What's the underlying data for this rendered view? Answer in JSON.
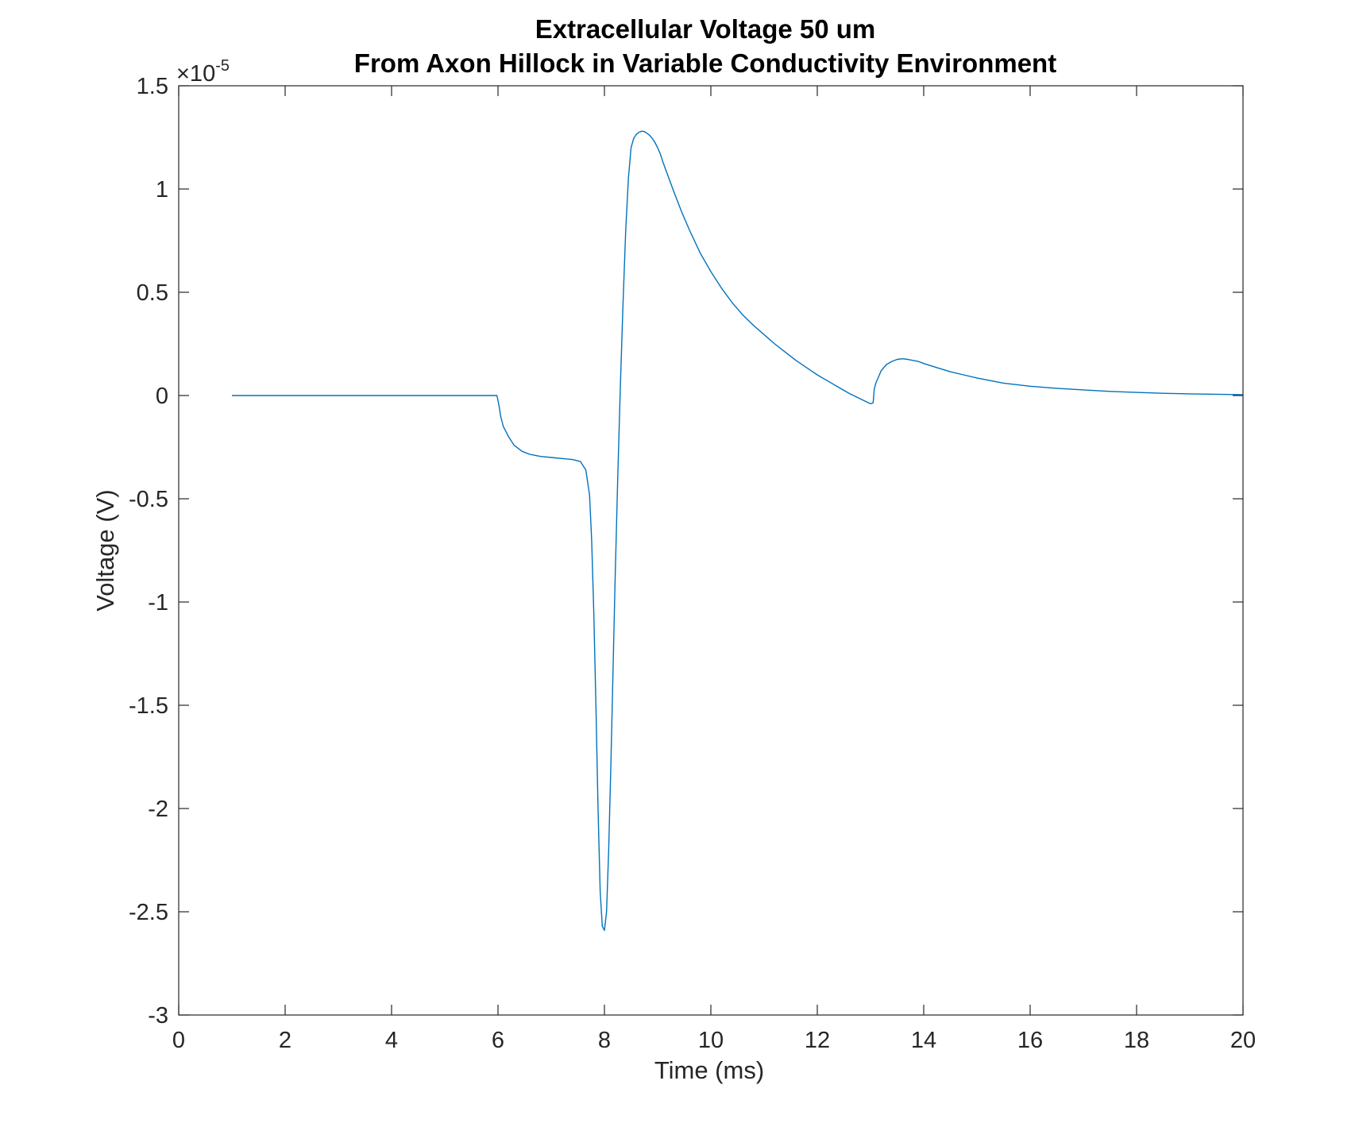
{
  "chart_data": {
    "type": "line",
    "title_line1": "Extracellular Voltage 50 um",
    "title_line2": "From Axon Hillock in Variable Conductivity Environment",
    "xlabel": "Time (ms)",
    "ylabel": "Voltage (V)",
    "xlim": [
      0,
      20
    ],
    "ylim": [
      -3,
      1.5
    ],
    "y_multiplier": {
      "base": "×10",
      "exponent": "-5"
    },
    "x_ticks": [
      "0",
      "2",
      "4",
      "6",
      "8",
      "10",
      "12",
      "14",
      "16",
      "18",
      "20"
    ],
    "y_ticks": [
      "-3",
      "-2.5",
      "-2",
      "-1.5",
      "-1",
      "-0.5",
      "0",
      "0.5",
      "1",
      "1.5"
    ],
    "grid": false,
    "line_color": "#0072BD",
    "series": [
      {
        "x": [
          1,
          5.98,
          6.02,
          6.05,
          6.1,
          6.2,
          6.3,
          6.45,
          6.6,
          6.8,
          7.0,
          7.2,
          7.4,
          7.55,
          7.65,
          7.72,
          7.76,
          7.8,
          7.84,
          7.88,
          7.92,
          7.96,
          8.0,
          8.04,
          8.08,
          8.12,
          8.16,
          8.2,
          8.25,
          8.3,
          8.35,
          8.4,
          8.45,
          8.5,
          8.55,
          8.6,
          8.65,
          8.7,
          8.75,
          8.8,
          8.85,
          8.9,
          8.95,
          9.0,
          9.05,
          9.1,
          9.2,
          9.3,
          9.45,
          9.6,
          9.8,
          10.0,
          10.2,
          10.4,
          10.6,
          10.8,
          11.0,
          11.2,
          11.4,
          11.6,
          11.8,
          12.0,
          12.2,
          12.4,
          12.6,
          12.8,
          13.0,
          13.05,
          13.07,
          13.1,
          13.15,
          13.2,
          13.3,
          13.4,
          13.5,
          13.6,
          13.7,
          13.8,
          13.9,
          14.0,
          14.25,
          14.5,
          14.75,
          15.0,
          15.5,
          16.0,
          16.5,
          17.0,
          17.5,
          18.0,
          18.5,
          19.0,
          19.5,
          20.0
        ],
        "values": [
          0,
          0,
          -0.05,
          -0.1,
          -0.15,
          -0.2,
          -0.24,
          -0.27,
          -0.285,
          -0.295,
          -0.3,
          -0.305,
          -0.31,
          -0.32,
          -0.36,
          -0.48,
          -0.7,
          -1.05,
          -1.5,
          -2.0,
          -2.4,
          -2.57,
          -2.59,
          -2.5,
          -2.2,
          -1.8,
          -1.35,
          -0.9,
          -0.4,
          0.05,
          0.45,
          0.8,
          1.05,
          1.2,
          1.245,
          1.265,
          1.275,
          1.28,
          1.278,
          1.27,
          1.26,
          1.245,
          1.225,
          1.2,
          1.17,
          1.13,
          1.06,
          0.99,
          0.89,
          0.8,
          0.69,
          0.6,
          0.52,
          0.45,
          0.39,
          0.34,
          0.295,
          0.25,
          0.21,
          0.17,
          0.135,
          0.1,
          0.07,
          0.04,
          0.01,
          -0.015,
          -0.04,
          -0.035,
          0.03,
          0.06,
          0.09,
          0.12,
          0.15,
          0.165,
          0.175,
          0.178,
          0.175,
          0.17,
          0.165,
          0.155,
          0.135,
          0.115,
          0.1,
          0.085,
          0.06,
          0.045,
          0.035,
          0.027,
          0.02,
          0.015,
          0.011,
          0.008,
          0.006,
          0.004
        ]
      }
    ]
  }
}
